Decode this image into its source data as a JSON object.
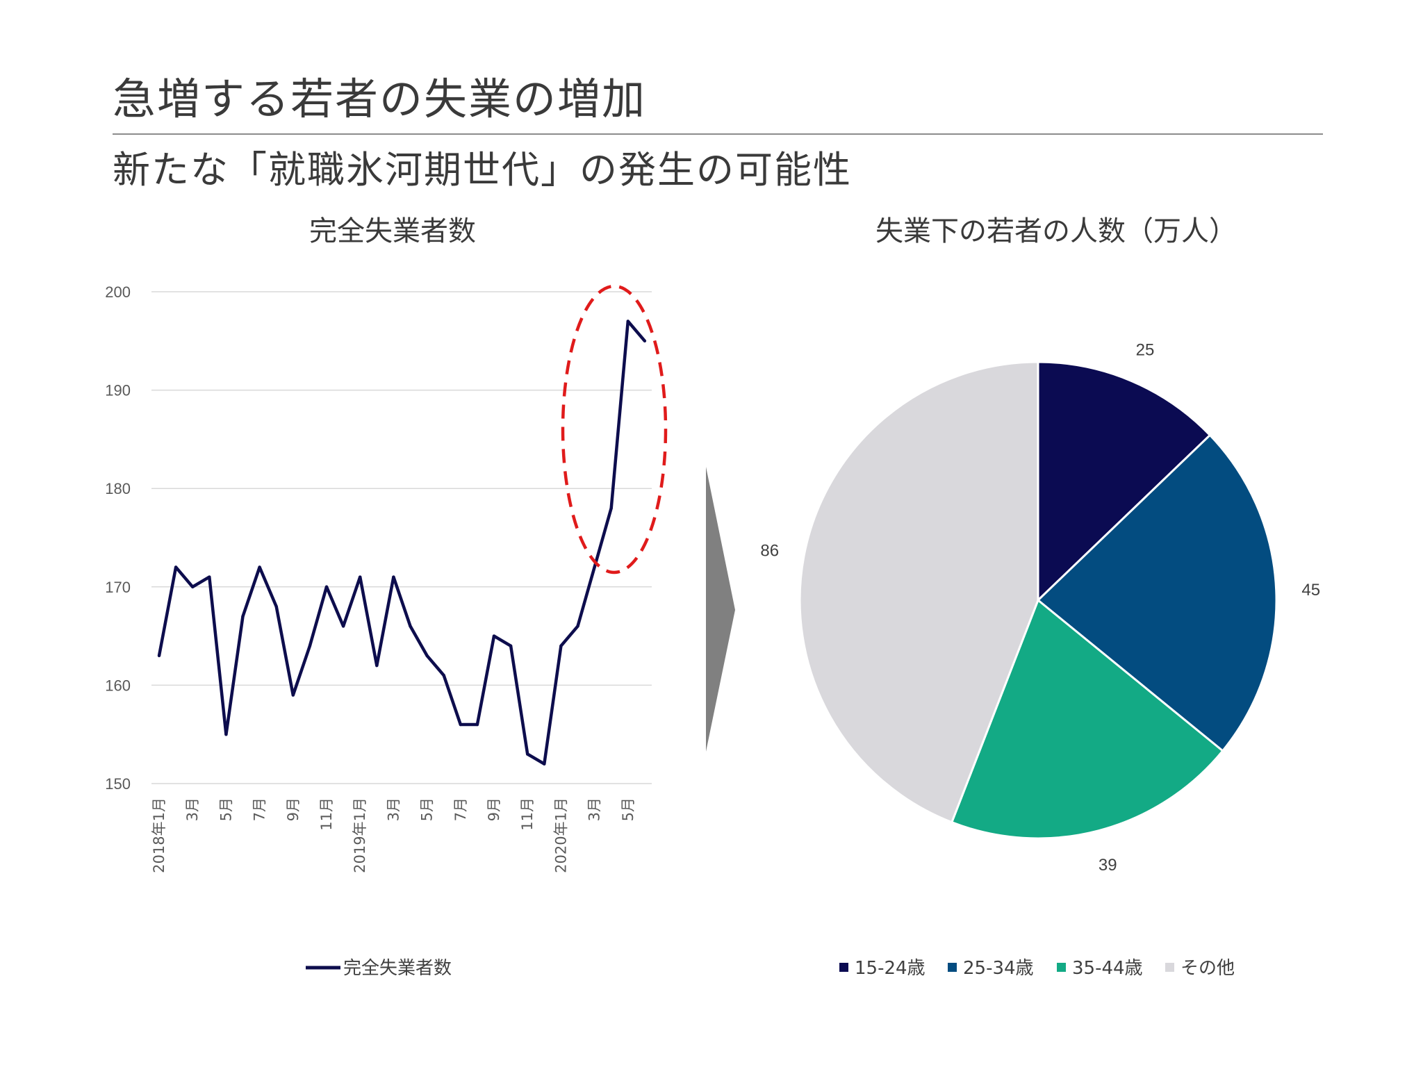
{
  "slide": {
    "title": "急増する若者の失業の増加",
    "subtitle": "新たな「就職氷河期世代」の発生の可能性"
  },
  "colors": {
    "line": "#0d0d4d",
    "highlight": "#e01b1b",
    "arrow": "#808080",
    "grid": "#d9d9d9"
  },
  "chart_data": [
    {
      "type": "line",
      "title": "完全失業者数",
      "x": [
        "2018年1月",
        "2月",
        "3月",
        "4月",
        "5月",
        "6月",
        "7月",
        "8月",
        "9月",
        "10月",
        "11月",
        "12月",
        "2019年1月",
        "2月",
        "3月",
        "4月",
        "5月",
        "6月",
        "7月",
        "8月",
        "9月",
        "10月",
        "11月",
        "12月",
        "2020年1月",
        "2月",
        "3月",
        "4月",
        "5月",
        "6月"
      ],
      "xtick_labels": [
        "2018年1月",
        "3月",
        "5月",
        "7月",
        "9月",
        "11月",
        "2019年1月",
        "3月",
        "5月",
        "7月",
        "9月",
        "11月",
        "2020年1月",
        "3月",
        "5月"
      ],
      "series": [
        {
          "name": "完全失業者数",
          "values": [
            163,
            172,
            170,
            171,
            155,
            167,
            172,
            168,
            159,
            164,
            170,
            166,
            171,
            162,
            171,
            166,
            163,
            161,
            156,
            156,
            165,
            164,
            153,
            152,
            164,
            166,
            172,
            178,
            197,
            195
          ]
        }
      ],
      "ylim": [
        150,
        200
      ],
      "yticks": [
        150,
        160,
        170,
        180,
        190,
        200
      ],
      "grid": true,
      "legend": "bottom",
      "annotation": "dashed red ellipse around the 2020 spike"
    },
    {
      "type": "pie",
      "title": "失業下の若者の人数（万人）",
      "categories": [
        "15-24歳",
        "25-34歳",
        "35-44歳",
        "その他"
      ],
      "values": [
        25,
        45,
        39,
        86
      ],
      "colors": [
        "#0b0b52",
        "#034c80",
        "#13aa85",
        "#d9d8dc"
      ],
      "legend": "bottom"
    }
  ]
}
